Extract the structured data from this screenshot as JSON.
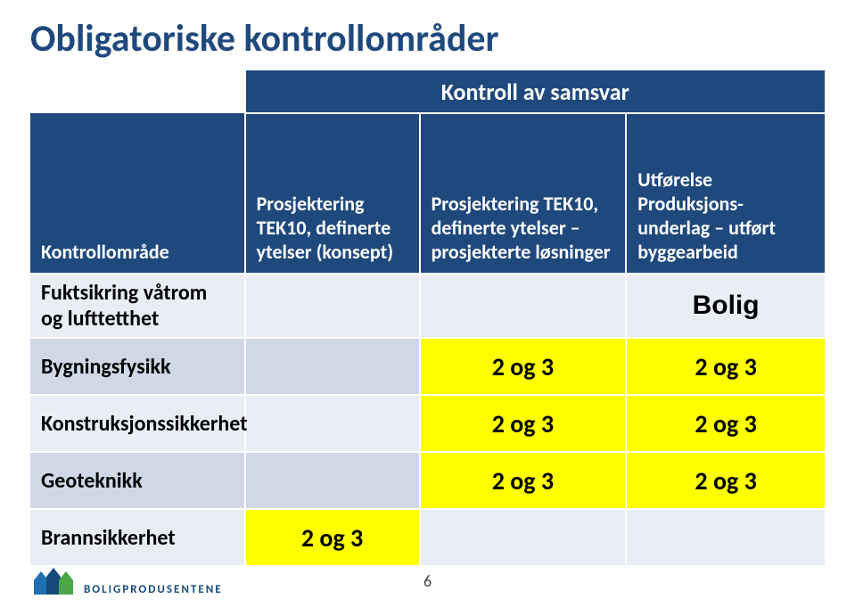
{
  "title": "Obligatoriske kontrollområder",
  "table": {
    "super_header": "Kontroll av samsvar",
    "headers": {
      "col0": "Kontrollområde",
      "col1": "Prosjektering TEK10, definerte ytelser (konsept)",
      "col2": "Prosjektering TEK10, definerte ytelser – prosjekterte løsninger",
      "col3": "Utførelse Produksjons-underlag – utført byggearbeid"
    },
    "rows": [
      {
        "label": "Fuktsikring våtrom og lufttetthet",
        "c1": "",
        "c2": "",
        "c3": "Bolig",
        "hl": [
          false,
          false,
          false
        ]
      },
      {
        "label": "Bygningsfysikk",
        "c1": "",
        "c2": "2 og 3",
        "c3": "2 og 3",
        "hl": [
          false,
          true,
          true
        ]
      },
      {
        "label": "Konstruksjons-sikkerhet",
        "c1": "",
        "c2": "2 og 3",
        "c3": "2 og 3",
        "hl": [
          false,
          true,
          true
        ]
      },
      {
        "label": "Geoteknikk",
        "c1": "",
        "c2": "2 og 3",
        "c3": "2 og 3",
        "hl": [
          false,
          true,
          true
        ]
      },
      {
        "label": "Brannsikkerhet",
        "c1": "2 og 3",
        "c2": "",
        "c3": "",
        "hl": [
          true,
          false,
          false
        ]
      }
    ]
  },
  "page_number": "6",
  "logo_text": "BOLIGPRODUSENTENE",
  "colors": {
    "title": "#1f497d",
    "header_bg": "#1f497d",
    "row_odd": "#e9edf4",
    "row_even": "#d0d8e8",
    "highlight": "#ffff00",
    "logo_blue": "#1f6fb2",
    "logo_dark": "#164a7c",
    "logo_green": "#4aa646"
  }
}
